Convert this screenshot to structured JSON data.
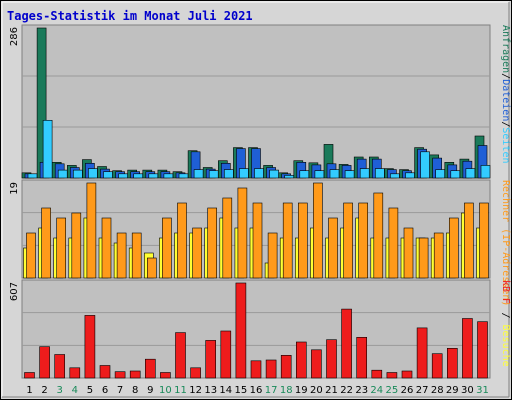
{
  "chart_data": {
    "type": "bar",
    "title": "Tages-Statistik im Monat Juli 2021",
    "days": [
      "1",
      "2",
      "3",
      "4",
      "5",
      "6",
      "7",
      "8",
      "9",
      "10",
      "11",
      "12",
      "13",
      "14",
      "15",
      "16",
      "17",
      "18",
      "19",
      "20",
      "21",
      "22",
      "23",
      "24",
      "25",
      "26",
      "27",
      "28",
      "29",
      "30",
      "31"
    ],
    "weekend_days": [
      "3",
      "4",
      "10",
      "11",
      "17",
      "18",
      "24",
      "25",
      "31"
    ],
    "colors": {
      "hits": "#1a7a5a",
      "files": "#33ccff",
      "pages": "#1f5fd6",
      "visits": "#ffff33",
      "sites": "#ff9a1a",
      "kbytes": "#ee1c1c",
      "title": "#0000cc",
      "weekday_label": "#000000",
      "weekend_label": "#1a8a5a",
      "panel_bg": "#c0c0c0",
      "frame_bg": "#d6d6d6"
    },
    "panels": [
      {
        "id": "top",
        "ymax_label": "286",
        "ymax": 286,
        "right_label_parts": [
          {
            "text": "Anfragen",
            "color": "#1a7a5a"
          },
          {
            "text": "/",
            "color": "#000000"
          },
          {
            "text": "Dateien",
            "color": "#1f5fd6"
          },
          {
            "text": "/",
            "color": "#000000"
          },
          {
            "text": "Seiten",
            "color": "#33ccff"
          }
        ],
        "series": [
          {
            "key": "hits",
            "values": [
              10,
              286,
              30,
              24,
              35,
              22,
              14,
              15,
              15,
              15,
              12,
              52,
              20,
              33,
              58,
              58,
              24,
              10,
              33,
              29,
              64,
              26,
              40,
              40,
              18,
              16,
              58,
              44,
              30,
              36,
              80
            ]
          },
          {
            "key": "pages",
            "values": [
              8,
              30,
              27,
              20,
              28,
              17,
              12,
              12,
              12,
              12,
              10,
              50,
              17,
              28,
              56,
              56,
              20,
              8,
              30,
              25,
              27,
              24,
              36,
              36,
              16,
              14,
              55,
              38,
              25,
              32,
              62
            ]
          },
          {
            "key": "files",
            "values": [
              8,
              110,
              15,
              15,
              18,
              12,
              8,
              8,
              8,
              8,
              8,
              16,
              14,
              16,
              18,
              18,
              15,
              5,
              14,
              14,
              16,
              14,
              18,
              18,
              8,
              10,
              50,
              16,
              14,
              18,
              24
            ]
          }
        ]
      },
      {
        "id": "middle",
        "ymax_label": "19",
        "ymax": 19,
        "right_label_parts": [
          {
            "text": "Rechner (IP-Adressen)",
            "color": "#ff9a1a"
          },
          {
            "text": " / ",
            "color": "#000000"
          },
          {
            "text": "Besuche",
            "color": "#ffff33"
          }
        ],
        "series": [
          {
            "key": "visits",
            "values": [
              6,
              10,
              8,
              8,
              12,
              8,
              7,
              6,
              5,
              8,
              9,
              9,
              10,
              12,
              10,
              10,
              3,
              8,
              8,
              10,
              8,
              10,
              12,
              8,
              8,
              8,
              8,
              8,
              9,
              13,
              10
            ]
          },
          {
            "key": "sites",
            "values": [
              9,
              14,
              12,
              13,
              19,
              12,
              9,
              9,
              4,
              12,
              15,
              10,
              14,
              16,
              18,
              15,
              9,
              15,
              15,
              19,
              12,
              15,
              15,
              17,
              14,
              10,
              8,
              9,
              12,
              15,
              15
            ]
          }
        ]
      },
      {
        "id": "bottom",
        "ymax_label": "607",
        "ymax": 607,
        "right_label_parts": [
          {
            "text": "kB F",
            "color": "#ee1c1c"
          }
        ],
        "series": [
          {
            "key": "kbytes",
            "values": [
              35,
              200,
              150,
              65,
              400,
              80,
              40,
              45,
              120,
              35,
              290,
              65,
              240,
              300,
              607,
              110,
              115,
              145,
              230,
              180,
              245,
              440,
              260,
              50,
              35,
              45,
              320,
              155,
              190,
              380,
              360
            ]
          }
        ]
      }
    ]
  }
}
